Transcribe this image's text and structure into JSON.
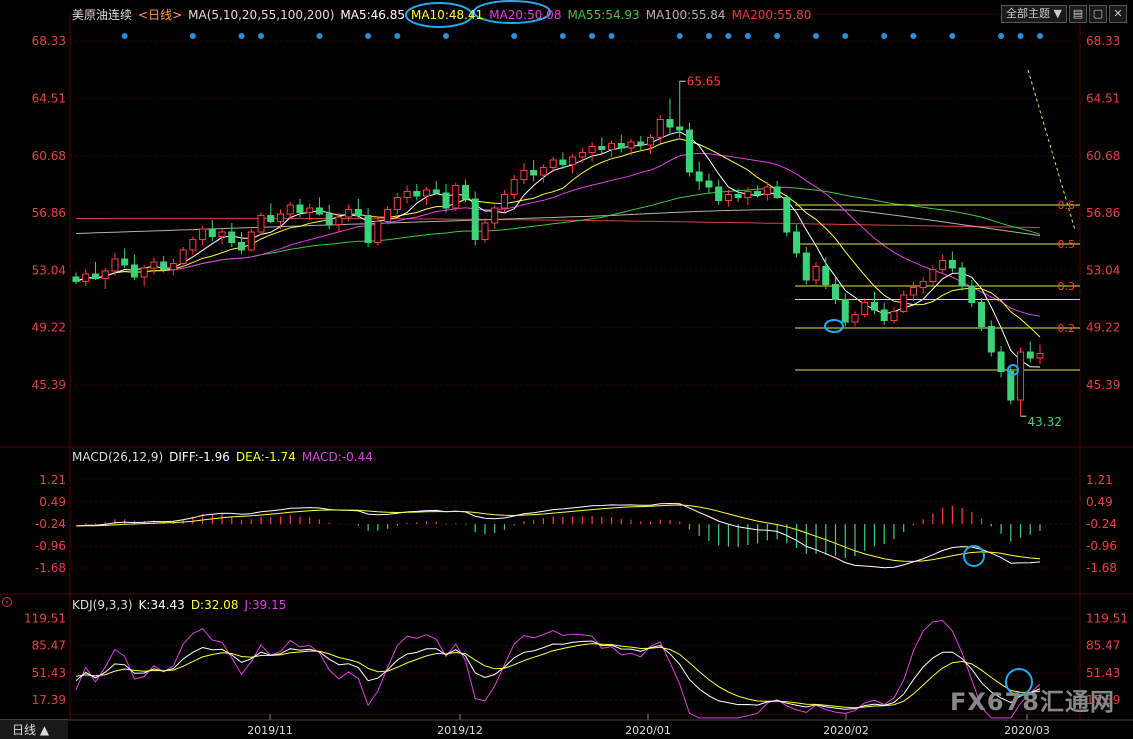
{
  "header": {
    "instrument": "美原油连续",
    "period": "<日线>",
    "ma_params": "MA(5,10,20,55,100,200)",
    "ma5": "MA5:46.85",
    "ma10": "MA10:48.41",
    "ma20": "MA20:50.08",
    "ma55": "MA55:54.93",
    "ma100": "MA100:55.84",
    "ma200": "MA200:55.80",
    "theme_button": "全部主题"
  },
  "macd_header": {
    "params": "MACD(26,12,9)",
    "diff": "DIFF:-1.96",
    "dea": "DEA:-1.74",
    "macd": "MACD:-0.44"
  },
  "kdj_header": {
    "params": "KDJ(9,3,3)",
    "k": "K:34.43",
    "d": "D:32.08",
    "j": "J:39.15"
  },
  "footer": {
    "period_tab": "日线 ▲"
  },
  "watermark": "FX678汇通网",
  "colors": {
    "up": "#ff3c3c",
    "down": "#3cd27a",
    "ma5": "#ffffff",
    "ma10": "#ffff3c",
    "ma20": "#e040e0",
    "ma55": "#3cc83c",
    "ma100": "#b0b0b0",
    "ma200": "#e04040",
    "highlight": "#22aaee",
    "fib": "#e6e64a"
  },
  "chart_data": [
    {
      "type": "candlestick",
      "title": "美原油连续",
      "y_ticks_left": [
        "68.33",
        "64.51",
        "60.68",
        "56.86",
        "53.04",
        "49.22",
        "45.39"
      ],
      "y_ticks_right": [
        "68.33",
        "64.51",
        "60.68",
        "56.86",
        "53.04",
        "49.22",
        "45.39"
      ],
      "ylim": [
        41.6,
        69.2
      ],
      "x_ticks": [
        "2019/11",
        "2019/12",
        "2020/01",
        "2020/02",
        "2020/03"
      ],
      "annotations": {
        "high": "65.65",
        "low": "43.32"
      },
      "fib_levels": [
        {
          "label": "0.6",
          "value": 57.4
        },
        {
          "label": "0.5",
          "value": 54.8
        },
        {
          "label": "0.3",
          "value": 52.0
        },
        {
          "label": "",
          "value": 51.1
        },
        {
          "label": "0.2",
          "value": 49.2
        },
        {
          "label": "",
          "value": 46.4
        }
      ],
      "ohlc": [
        [
          52.6,
          52.9,
          52.1,
          52.3
        ],
        [
          52.3,
          53.1,
          52.0,
          52.8
        ],
        [
          52.8,
          53.6,
          52.4,
          52.5
        ],
        [
          52.5,
          53.2,
          51.8,
          53.0
        ],
        [
          53.0,
          54.2,
          52.7,
          53.8
        ],
        [
          53.8,
          54.5,
          53.2,
          53.4
        ],
        [
          53.4,
          54.1,
          52.4,
          52.6
        ],
        [
          52.6,
          53.4,
          52.0,
          53.2
        ],
        [
          53.2,
          53.9,
          52.8,
          53.6
        ],
        [
          53.6,
          54.0,
          52.9,
          53.1
        ],
        [
          53.1,
          53.8,
          52.7,
          53.5
        ],
        [
          53.5,
          54.6,
          53.3,
          54.4
        ],
        [
          54.4,
          55.3,
          54.1,
          55.1
        ],
        [
          55.1,
          56.0,
          54.7,
          55.8
        ],
        [
          55.8,
          56.4,
          55.0,
          55.3
        ],
        [
          55.3,
          55.9,
          54.8,
          55.6
        ],
        [
          55.6,
          56.2,
          54.6,
          54.9
        ],
        [
          54.9,
          55.6,
          54.1,
          54.4
        ],
        [
          54.4,
          55.8,
          54.3,
          55.6
        ],
        [
          55.6,
          56.9,
          55.4,
          56.7
        ],
        [
          56.7,
          57.5,
          56.2,
          56.3
        ],
        [
          56.3,
          57.1,
          55.8,
          56.8
        ],
        [
          56.8,
          57.6,
          56.5,
          57.4
        ],
        [
          57.4,
          57.8,
          56.6,
          56.9
        ],
        [
          56.9,
          57.5,
          56.4,
          57.2
        ],
        [
          57.2,
          57.9,
          56.7,
          56.8
        ],
        [
          56.8,
          57.4,
          55.8,
          56.1
        ],
        [
          56.1,
          56.9,
          55.6,
          56.6
        ],
        [
          56.6,
          57.4,
          56.3,
          57.1
        ],
        [
          57.1,
          57.8,
          56.5,
          56.7
        ],
        [
          56.7,
          57.2,
          54.6,
          54.9
        ],
        [
          54.9,
          56.6,
          54.7,
          56.3
        ],
        [
          56.3,
          57.3,
          56.1,
          57.1
        ],
        [
          57.1,
          58.2,
          56.8,
          57.9
        ],
        [
          57.9,
          58.7,
          57.5,
          58.3
        ],
        [
          58.3,
          58.8,
          57.7,
          58.0
        ],
        [
          58.0,
          58.6,
          57.4,
          58.4
        ],
        [
          58.4,
          59.0,
          58.1,
          58.2
        ],
        [
          58.2,
          58.8,
          56.9,
          57.2
        ],
        [
          57.2,
          58.9,
          57.0,
          58.7
        ],
        [
          58.7,
          59.1,
          57.6,
          57.8
        ],
        [
          57.8,
          58.3,
          54.7,
          55.1
        ],
        [
          55.1,
          56.4,
          54.9,
          56.2
        ],
        [
          56.2,
          57.4,
          55.8,
          57.2
        ],
        [
          57.2,
          58.4,
          56.9,
          58.1
        ],
        [
          58.1,
          59.4,
          57.8,
          59.1
        ],
        [
          59.1,
          60.2,
          58.8,
          59.7
        ],
        [
          59.7,
          60.4,
          59.0,
          59.4
        ],
        [
          59.4,
          60.1,
          58.9,
          59.9
        ],
        [
          59.9,
          60.6,
          59.6,
          60.4
        ],
        [
          60.4,
          60.9,
          59.8,
          60.1
        ],
        [
          60.1,
          60.8,
          59.5,
          60.6
        ],
        [
          60.6,
          61.2,
          60.2,
          60.9
        ],
        [
          60.9,
          61.6,
          60.3,
          61.3
        ],
        [
          61.3,
          61.9,
          60.8,
          61.1
        ],
        [
          61.1,
          61.7,
          60.6,
          61.5
        ],
        [
          61.5,
          62.1,
          60.9,
          61.2
        ],
        [
          61.2,
          61.8,
          60.7,
          61.6
        ],
        [
          61.6,
          62.0,
          61.0,
          61.4
        ],
        [
          61.4,
          62.1,
          60.8,
          61.9
        ],
        [
          61.9,
          63.4,
          61.5,
          63.1
        ],
        [
          63.1,
          64.5,
          62.2,
          62.6
        ],
        [
          62.6,
          65.65,
          61.9,
          62.4
        ],
        [
          62.4,
          62.9,
          59.3,
          59.6
        ],
        [
          59.6,
          60.3,
          58.4,
          59.0
        ],
        [
          59.0,
          59.5,
          58.2,
          58.6
        ],
        [
          58.6,
          59.1,
          57.4,
          57.7
        ],
        [
          57.7,
          58.4,
          57.3,
          58.1
        ],
        [
          58.1,
          58.5,
          57.6,
          57.9
        ],
        [
          57.9,
          58.6,
          57.4,
          58.3
        ],
        [
          58.3,
          58.7,
          57.9,
          58.1
        ],
        [
          58.1,
          58.9,
          57.7,
          58.6
        ],
        [
          58.6,
          59.0,
          57.8,
          57.9
        ],
        [
          57.9,
          58.1,
          55.3,
          55.6
        ],
        [
          55.6,
          56.1,
          53.9,
          54.2
        ],
        [
          54.2,
          54.6,
          52.1,
          52.4
        ],
        [
          52.4,
          53.6,
          52.1,
          53.3
        ],
        [
          53.3,
          53.9,
          51.8,
          52.1
        ],
        [
          52.1,
          52.6,
          50.8,
          51.1
        ],
        [
          51.1,
          51.5,
          49.3,
          49.6
        ],
        [
          49.6,
          50.3,
          49.3,
          50.1
        ],
        [
          50.1,
          51.2,
          49.9,
          50.9
        ],
        [
          50.9,
          51.6,
          50.1,
          50.4
        ],
        [
          50.4,
          50.9,
          49.4,
          49.7
        ],
        [
          49.7,
          50.6,
          49.5,
          50.3
        ],
        [
          50.3,
          51.7,
          50.2,
          51.4
        ],
        [
          51.4,
          52.3,
          51.0,
          51.9
        ],
        [
          51.9,
          52.6,
          51.5,
          52.3
        ],
        [
          52.3,
          53.4,
          52.1,
          53.1
        ],
        [
          53.1,
          54.1,
          52.8,
          53.7
        ],
        [
          53.7,
          54.3,
          52.9,
          53.2
        ],
        [
          53.2,
          53.6,
          51.7,
          52.0
        ],
        [
          52.0,
          52.4,
          50.6,
          50.9
        ],
        [
          50.9,
          51.2,
          49.0,
          49.3
        ],
        [
          49.3,
          49.7,
          47.3,
          47.6
        ],
        [
          47.6,
          48.0,
          45.9,
          46.3
        ],
        [
          46.3,
          46.6,
          44.1,
          44.4
        ],
        [
          44.4,
          47.9,
          43.32,
          47.6
        ],
        [
          47.6,
          48.3,
          46.9,
          47.2
        ],
        [
          47.2,
          48.1,
          46.8,
          47.5
        ]
      ]
    },
    {
      "type": "bar+line",
      "title": "MACD(26,12,9)",
      "y_ticks_left": [
        "1.21",
        "0.49",
        "-0.24",
        "-0.96",
        "-1.68"
      ],
      "y_ticks_right": [
        "1.21",
        "0.49",
        "-0.24",
        "-0.96",
        "-1.68"
      ],
      "ylim": [
        -2.4,
        1.6
      ]
    },
    {
      "type": "line",
      "title": "KDJ(9,3,3)",
      "y_ticks_left": [
        "119.51",
        "85.47",
        "51.43",
        "17.39"
      ],
      "y_ticks_right": [
        "119.51",
        "85.47",
        "51.43",
        "17.39"
      ],
      "ylim": [
        -5,
        130
      ]
    }
  ]
}
